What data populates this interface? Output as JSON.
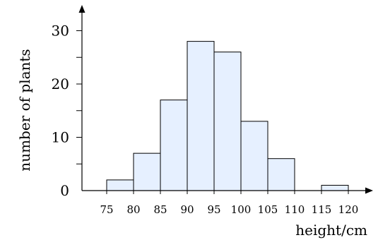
{
  "chart_data": {
    "type": "bar",
    "title": "",
    "xlabel": "height/cm",
    "ylabel": "number of plants",
    "bin_edges": [
      75,
      80,
      85,
      90,
      95,
      100,
      105,
      110,
      115,
      120
    ],
    "x_tick_labels": [
      "75",
      "80",
      "85",
      "90",
      "95",
      "100",
      "105",
      "110",
      "115",
      "120"
    ],
    "y_ticks": [
      0,
      10,
      20,
      30
    ],
    "ylim": [
      0,
      32
    ],
    "xlim": [
      75,
      120
    ],
    "series": [
      {
        "categories": [
          "75-80",
          "80-85",
          "85-90",
          "90-95",
          "95-100",
          "100-105",
          "105-110",
          "110-115",
          "115-120"
        ],
        "values": [
          2,
          7,
          17,
          28,
          26,
          13,
          6,
          0,
          1
        ]
      }
    ],
    "grid": false,
    "legend": "none"
  }
}
